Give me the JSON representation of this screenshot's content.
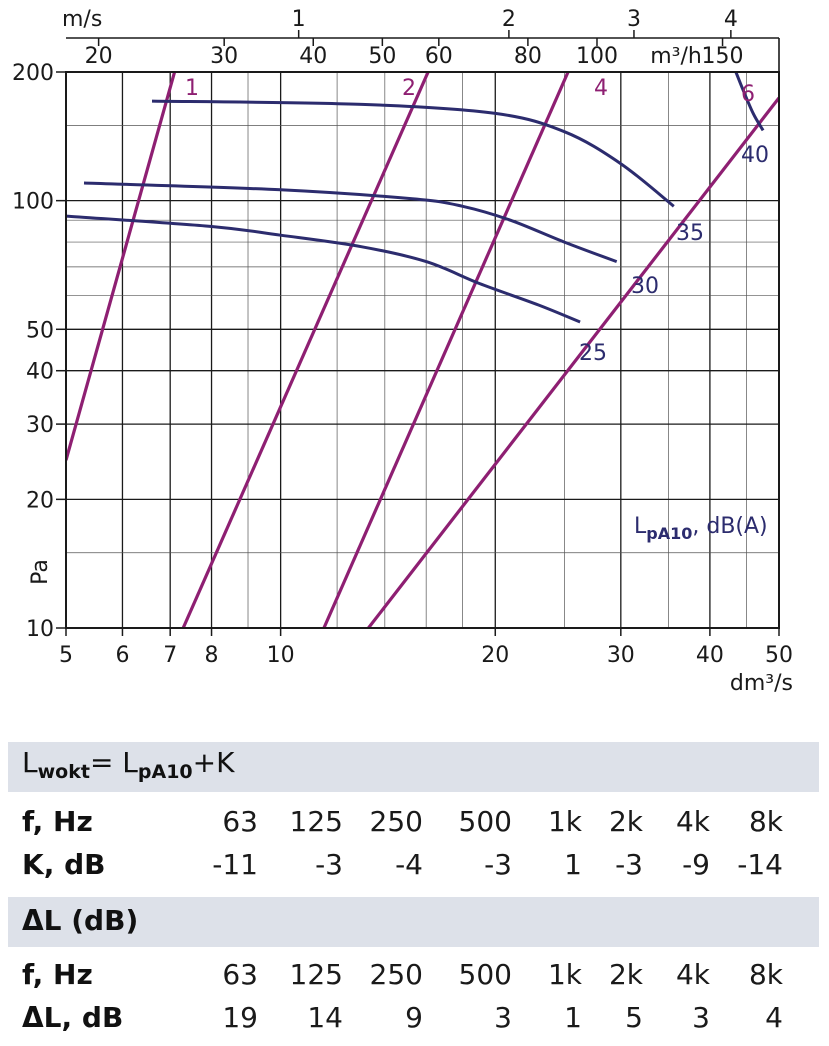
{
  "chart_data": {
    "type": "line",
    "x_axis": {
      "label": "dm³/s",
      "scale": "log",
      "range": [
        5,
        50
      ],
      "ticks": [
        "5",
        "6",
        "7",
        "8",
        "10",
        "20",
        "30",
        "40",
        "50"
      ]
    },
    "y_axis": {
      "label": "Pa",
      "scale": "log",
      "range": [
        10,
        200
      ],
      "ticks": [
        "10",
        "20",
        "30",
        "40",
        "50",
        "100",
        "200"
      ]
    },
    "top_axis_ms": {
      "label": "m/s",
      "ticks": [
        "1",
        "2",
        "3",
        "4"
      ],
      "tick_dm3s": [
        10.6,
        20.9,
        31.3,
        42.8
      ]
    },
    "top_axis_m3h": {
      "label": "m³/h",
      "ticks": [
        "20",
        "30",
        "40",
        "50",
        "60",
        "80",
        "100",
        "150"
      ]
    },
    "velocity_lines": [
      {
        "label": "1",
        "points": [
          [
            5,
            24.7
          ],
          [
            7.1,
            200
          ]
        ]
      },
      {
        "label": "2",
        "points": [
          [
            7.3,
            10
          ],
          [
            16.1,
            200
          ]
        ]
      },
      {
        "label": "4",
        "points": [
          [
            11.5,
            10
          ],
          [
            25.3,
            200
          ]
        ]
      },
      {
        "label": "6",
        "points": [
          [
            5,
            1.22
          ],
          [
            50,
            174
          ]
        ]
      }
    ],
    "sound_curves": [
      {
        "label": "40",
        "points": [
          [
            43.5,
            200
          ],
          [
            44.5,
            182
          ],
          [
            46.0,
            160
          ],
          [
            47.5,
            146
          ]
        ]
      },
      {
        "label": "35",
        "points": [
          [
            6.6,
            171
          ],
          [
            13,
            168
          ],
          [
            20,
            160
          ],
          [
            25,
            145
          ],
          [
            30,
            122
          ],
          [
            35.6,
            97
          ]
        ]
      },
      {
        "label": "30",
        "points": [
          [
            5.3,
            110
          ],
          [
            10,
            106
          ],
          [
            15.3,
            101
          ],
          [
            18,
            97
          ],
          [
            21,
            90
          ],
          [
            25,
            80
          ],
          [
            29.6,
            72
          ]
        ]
      },
      {
        "label": "25",
        "points": [
          [
            5,
            92
          ],
          [
            8,
            87
          ],
          [
            10,
            83
          ],
          [
            13,
            78
          ],
          [
            16,
            72
          ],
          [
            19,
            64
          ],
          [
            23,
            57
          ],
          [
            26.3,
            52
          ]
        ]
      }
    ],
    "annotation": {
      "main": "L",
      "sub": "pA10",
      "rest": ", dB(A)"
    }
  },
  "table1": {
    "title_main": "L",
    "title_sub1": "wokt",
    "title_mid": "= L",
    "title_sub2": "pA10",
    "title_end": "+K",
    "row1_label": "f, Hz",
    "row1_values": [
      "63",
      "125",
      "250",
      "500",
      "1k",
      "2k",
      "4k",
      "8k"
    ],
    "row2_label": "K, dB",
    "row2_values": [
      "-11",
      "-3",
      "-4",
      "-3",
      "1",
      "-3",
      "-9",
      "-14"
    ]
  },
  "table2": {
    "title": "ΔL (dB)",
    "row1_label": "f, Hz",
    "row1_values": [
      "63",
      "125",
      "250",
      "500",
      "1k",
      "2k",
      "4k",
      "8k"
    ],
    "row2_label": "ΔL, dB",
    "row2_values": [
      "19",
      "14",
      "9",
      "3",
      "1",
      "5",
      "3",
      "4"
    ]
  },
  "colors": {
    "velocity": "#8e1f72",
    "sound": "#2c2c6e",
    "grid": "#1a1a1a",
    "band": "#dde1e9"
  }
}
